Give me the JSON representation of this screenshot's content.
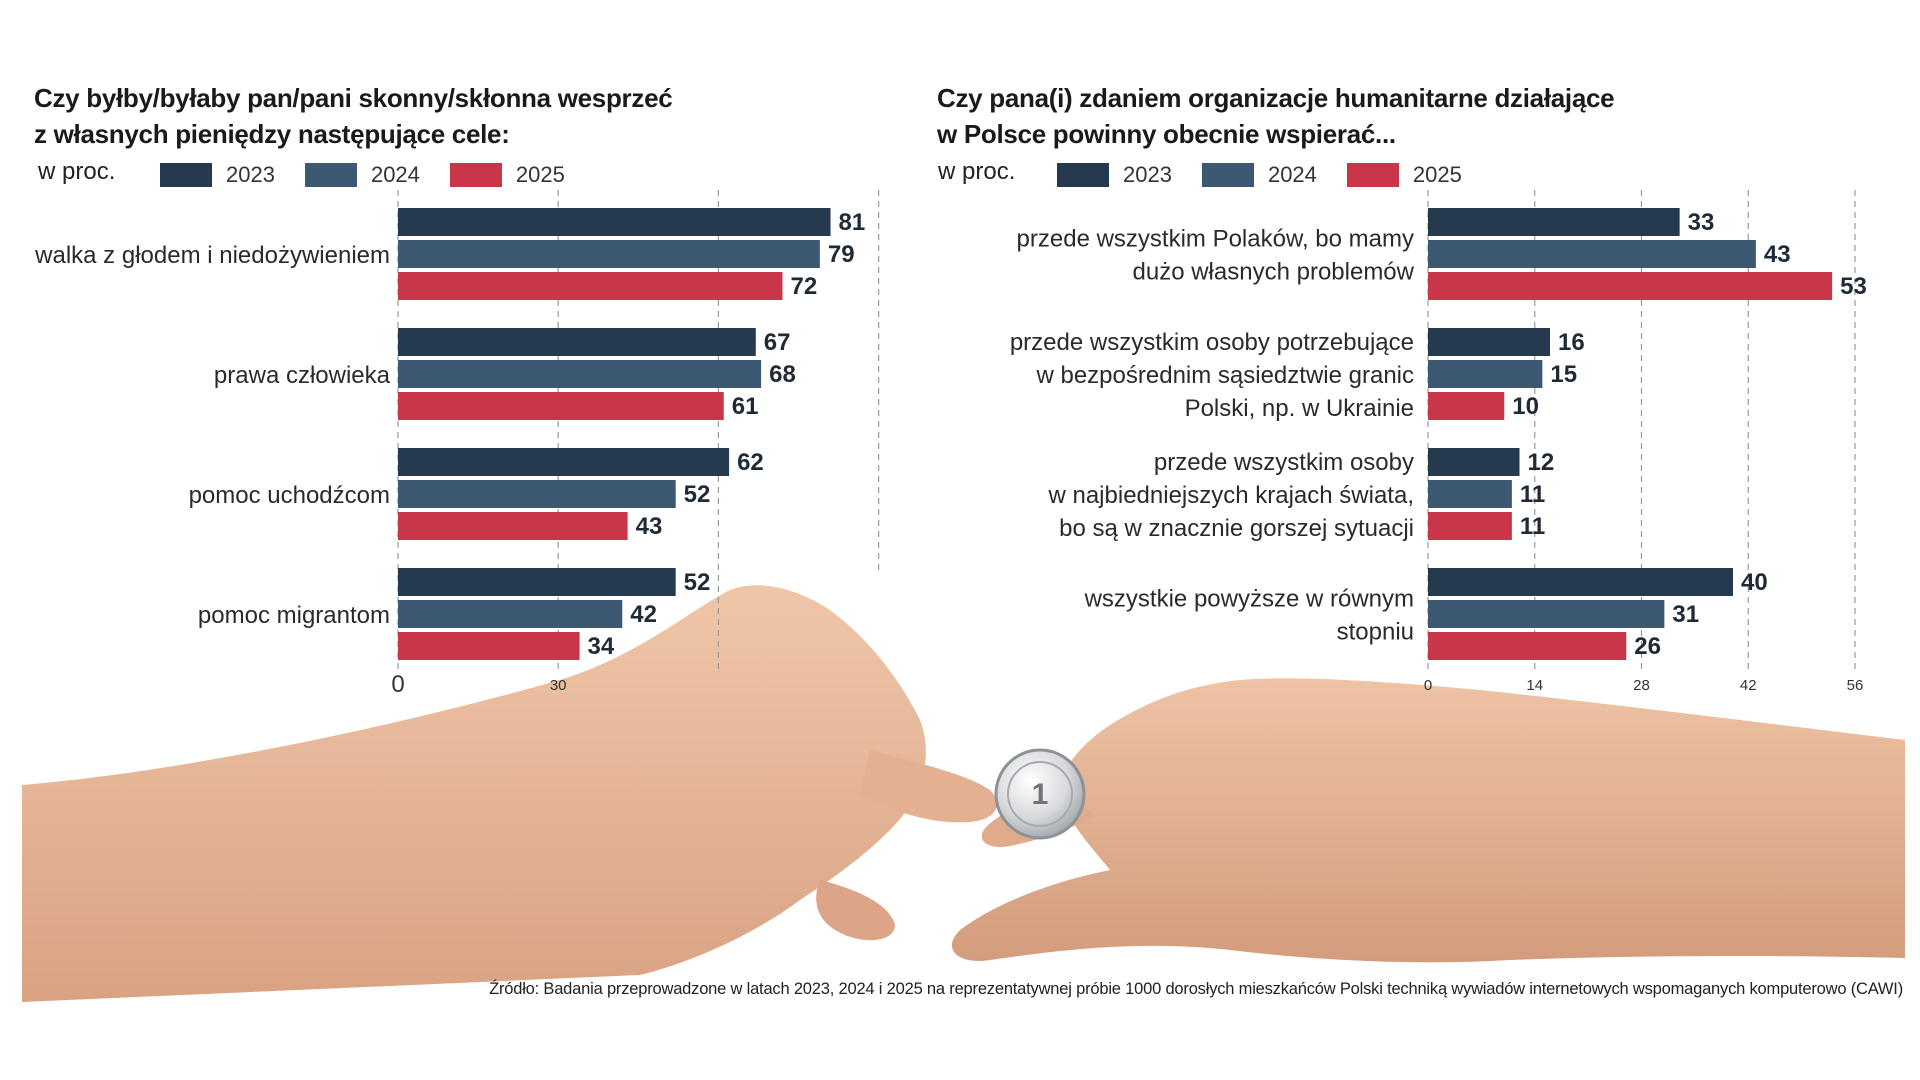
{
  "colors": {
    "y2023": "#253a4f",
    "y2024": "#3c5872",
    "y2025": "#c9364a",
    "skin": "#e9bd9f",
    "skinShade": "#d59f80"
  },
  "legend": [
    "2023",
    "2024",
    "2025"
  ],
  "source": "Źródło: Badania przeprowadzone w latach 2023, 2024 i 2025 na reprezentatywnej próbie 1000 dorosłych mieszkańców Polski techniką wywiadów internetowych wspomaganych komputerowo (CAWI)",
  "left": {
    "title_line1": "Czy byłby/byłaby pan/pani skonny/skłonna wesprzeć",
    "title_line2": "z własnych pieniędzy następujące cele:",
    "unit": "w proc."
  },
  "right": {
    "title_line1": "Czy pana(i) zdaniem organizacje humanitarne działające",
    "title_line2": "w Polsce powinny obecnie wspierać...",
    "unit": "w proc."
  },
  "chart_data": [
    {
      "type": "bar",
      "orientation": "horizontal",
      "title": "Czy byłby/byłaby pan/pani skonny/skłonna wesprzeć z własnych pieniędzy następujące cele:",
      "unit": "w proc.",
      "xlim": [
        0,
        90
      ],
      "ticks": [
        0,
        30
      ],
      "categories": [
        [
          "walka z głodem i niedożywieniem"
        ],
        [
          "prawa człowieka"
        ],
        [
          "pomoc uchodźcom"
        ],
        [
          "pomoc migrantom"
        ]
      ],
      "series": [
        {
          "name": "2023",
          "values": [
            81,
            67,
            62,
            52
          ]
        },
        {
          "name": "2024",
          "values": [
            79,
            68,
            52,
            42
          ]
        },
        {
          "name": "2025",
          "values": [
            72,
            61,
            43,
            34
          ]
        }
      ]
    },
    {
      "type": "bar",
      "orientation": "horizontal",
      "title": "Czy pana(i) zdaniem organizacje humanitarne działające w Polsce powinny obecnie wspierać...",
      "unit": "w proc.",
      "xlim": [
        0,
        56
      ],
      "ticks": [
        0,
        14,
        28,
        42,
        56
      ],
      "categories": [
        [
          "przede wszystkim Polaków, bo mamy",
          "dużo własnych problemów"
        ],
        [
          "przede wszystkim osoby potrzebujące",
          "w bezpośrednim sąsiedztwie granic",
          "Polski, np. w Ukrainie"
        ],
        [
          "przede wszystkim osoby",
          "w najbiedniejszych krajach świata,",
          "bo są w znacznie gorszej sytuacji"
        ],
        [
          "wszystkie powyższe w równym",
          "stopniu"
        ]
      ],
      "series": [
        {
          "name": "2023",
          "values": [
            33,
            16,
            12,
            40
          ]
        },
        {
          "name": "2024",
          "values": [
            43,
            15,
            11,
            31
          ]
        },
        {
          "name": "2025",
          "values": [
            53,
            10,
            11,
            26
          ]
        }
      ]
    }
  ]
}
